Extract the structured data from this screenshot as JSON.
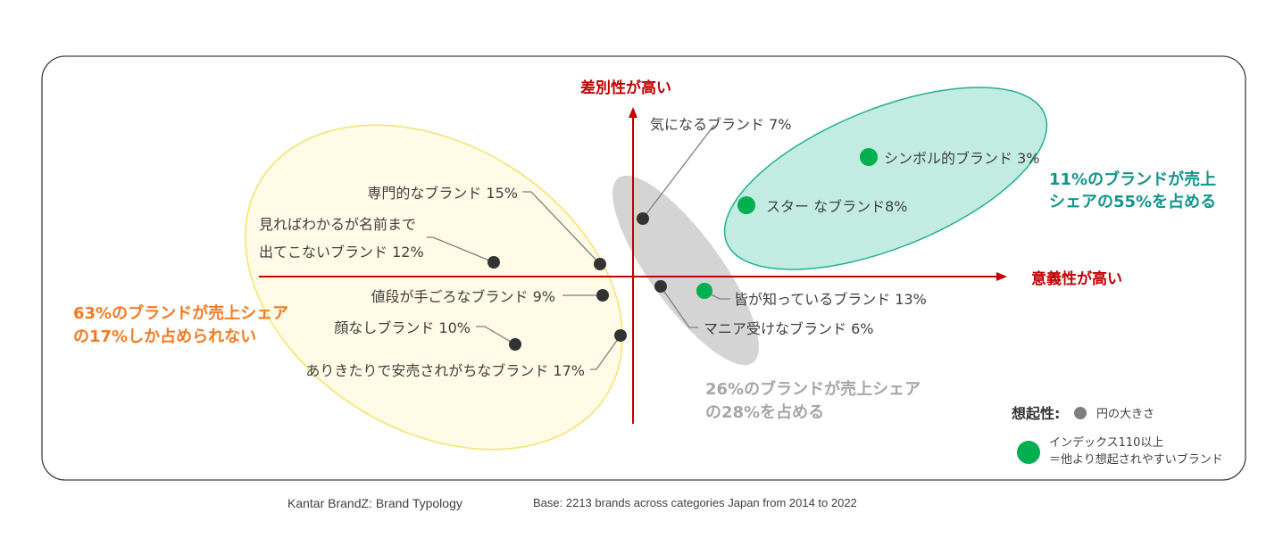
{
  "axes": {
    "y_label": "差別性が高い",
    "x_label": "意義性が高い"
  },
  "brands": [
    {
      "label": "気になるブランド 7%",
      "type": "normal"
    },
    {
      "label": "シンボル的ブランド 3%",
      "type": "high_recall"
    },
    {
      "label": "スター なブランド8%",
      "type": "high_recall"
    },
    {
      "label": "専門的なブランド 15%",
      "type": "normal"
    },
    {
      "label_line1": "見ればわかるが名前まで",
      "label_line2": "出てこないブランド 12%",
      "type": "normal"
    },
    {
      "label": "値段が手ごろなブランド 9%",
      "type": "normal"
    },
    {
      "label": "皆が知っているブランド 13%",
      "type": "high_recall"
    },
    {
      "label": "マニア受けなブランド 6%",
      "type": "normal"
    },
    {
      "label": "顔なしブランド 10%",
      "type": "normal"
    },
    {
      "label": "ありきたりで安売されがちなブランド 17%",
      "type": "normal"
    }
  ],
  "groups": {
    "teal": {
      "line1": "11%のブランドが売上",
      "line2": "シェアの55%を占める",
      "color": "#13958a"
    },
    "gray": {
      "line1": "26%のブランドが売上シェア",
      "line2": "の28%を占める",
      "color": "#a6a6a6"
    },
    "yellow": {
      "line1": "63%のブランドが売上シェア",
      "line2": "の17%しか占められない",
      "color": "#f47a20"
    }
  },
  "legend": {
    "title": "想起性:",
    "size_label": "円の大きさ",
    "green_line1": "インデックス110以上",
    "green_line2": "＝他より想起されやすいブランド"
  },
  "colors": {
    "dot": "#333333",
    "green": "#00b050",
    "axis": "#c00000",
    "yellow_fill": "#fffbe6",
    "teal_fill": "#c2ece2",
    "gray_fill": "#d4d4d4"
  },
  "footer": {
    "left": "Kantar BrandZ:  Brand Typology",
    "right": "Base: 2213 brands across categories Japan from 2014 to 2022"
  }
}
